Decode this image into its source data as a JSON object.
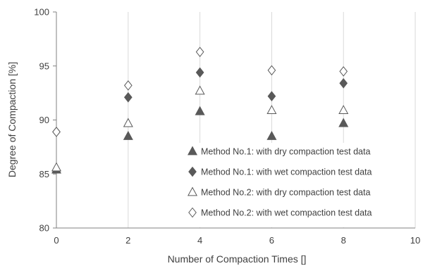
{
  "chart_data": {
    "type": "scatter",
    "xlabel": "Number  of Compaction Times []",
    "ylabel": "Degree of Compaction [%]",
    "xlim": [
      0,
      10
    ],
    "ylim": [
      80,
      100
    ],
    "x_ticks": [
      "0",
      "2",
      "4",
      "6",
      "8",
      "10"
    ],
    "y_ticks": [
      "80",
      "85",
      "90",
      "95",
      "100"
    ],
    "grid": "vertical",
    "legend_position": "bottom-right",
    "series": [
      {
        "name": "Method No.1: with dry compaction test data",
        "marker": "triangle-filled",
        "color": "#595959",
        "points": [
          [
            0,
            85.4
          ],
          [
            2,
            88.5
          ],
          [
            4,
            90.8
          ],
          [
            6,
            88.5
          ],
          [
            8,
            89.7
          ]
        ]
      },
      {
        "name": "Method No.1: with wet compaction test data",
        "marker": "diamond-filled",
        "color": "#595959",
        "points": [
          [
            0,
            88.9
          ],
          [
            2,
            92.1
          ],
          [
            4,
            94.4
          ],
          [
            6,
            92.2
          ],
          [
            8,
            93.4
          ]
        ]
      },
      {
        "name": "Method No.2: with dry compaction test data",
        "marker": "triangle-open",
        "color": "#595959",
        "points": [
          [
            0,
            85.6
          ],
          [
            2,
            89.7
          ],
          [
            4,
            92.7
          ],
          [
            6,
            90.9
          ],
          [
            8,
            90.9
          ]
        ]
      },
      {
        "name": "Method No.2: with wet compaction test data",
        "marker": "diamond-open",
        "color": "#595959",
        "points": [
          [
            0,
            88.9
          ],
          [
            2,
            93.2
          ],
          [
            4,
            96.3
          ],
          [
            6,
            94.6
          ],
          [
            8,
            94.5
          ]
        ]
      }
    ]
  }
}
